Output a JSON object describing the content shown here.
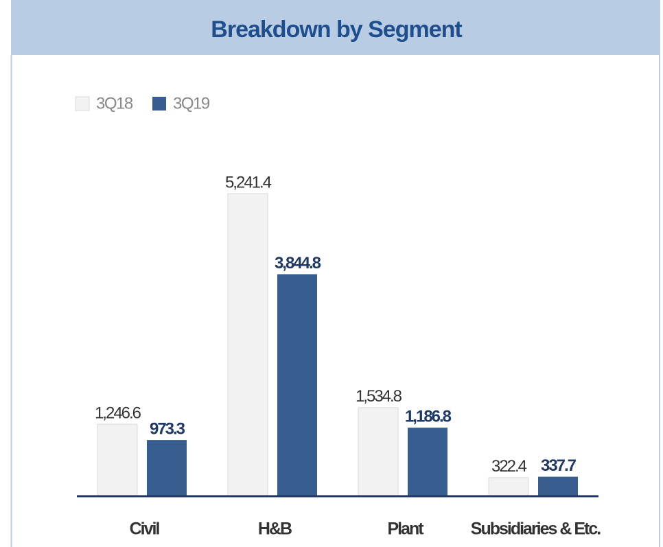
{
  "chart_data": {
    "type": "bar",
    "title": "Breakdown by Segment",
    "categories": [
      "Civil",
      "H&B",
      "Plant",
      "Subsidiaries & Etc."
    ],
    "series": [
      {
        "name": "3Q18",
        "color": "#f2f2f2",
        "values": [
          1246.6,
          5241.4,
          1534.8,
          322.4
        ],
        "value_labels": [
          "1,246.6",
          "5,241.4",
          "1,534.8",
          "322.4"
        ]
      },
      {
        "name": "3Q19",
        "color": "#375e8f",
        "values": [
          973.3,
          3844.8,
          1186.8,
          337.7
        ],
        "value_labels": [
          "973.3",
          "3,844.8",
          "1,186.8",
          "337.7"
        ]
      }
    ],
    "legend": "top-left"
  }
}
